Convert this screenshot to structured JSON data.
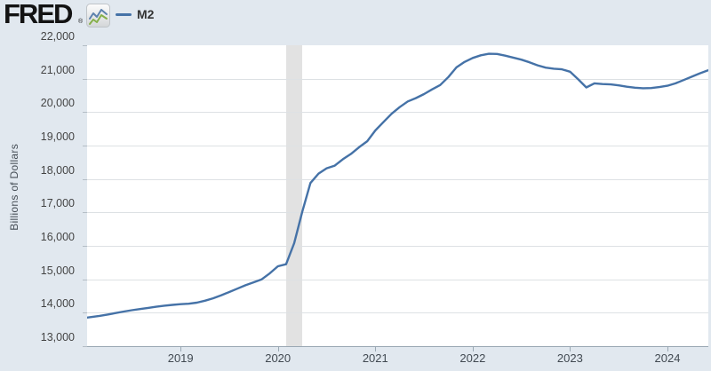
{
  "header": {
    "logo_text": "FRED",
    "registered_mark": "®",
    "sparkline_icon": "fred-sparkline-icon",
    "legend": {
      "label": "M2",
      "swatch_color": "#4572a7"
    }
  },
  "colors": {
    "background": "#e1e8ef",
    "plot_background": "#ffffff",
    "gridline": "#dde1e4",
    "axis_line": "#9aa8b3",
    "tick_label": "#444444",
    "series_line": "#4572a7",
    "recession_band": "#e2e2e2"
  },
  "chart_data": {
    "type": "line",
    "title": "",
    "ylabel": "Billions of Dollars",
    "xlabel": "",
    "legend_position": "top-left",
    "grid": "horizontal",
    "ylim": [
      13000,
      22000
    ],
    "x_domain": [
      2018.04,
      2024.42
    ],
    "y_ticks": [
      {
        "value": 22000,
        "label": "22,000"
      },
      {
        "value": 21000,
        "label": "21,000"
      },
      {
        "value": 20000,
        "label": "20,000"
      },
      {
        "value": 19000,
        "label": "19,000"
      },
      {
        "value": 18000,
        "label": "18,000"
      },
      {
        "value": 17000,
        "label": "17,000"
      },
      {
        "value": 16000,
        "label": "16,000"
      },
      {
        "value": 15000,
        "label": "15,000"
      },
      {
        "value": 14000,
        "label": "14,000"
      },
      {
        "value": 13000,
        "label": "13,000"
      }
    ],
    "x_ticks": [
      {
        "value": 2019,
        "label": "2019"
      },
      {
        "value": 2020,
        "label": "2020"
      },
      {
        "value": 2021,
        "label": "2021"
      },
      {
        "value": 2022,
        "label": "2022"
      },
      {
        "value": 2023,
        "label": "2023"
      },
      {
        "value": 2024,
        "label": "2024"
      }
    ],
    "recession_band": {
      "start": 2020.083,
      "end": 2020.25,
      "color": "#e2e2e2"
    },
    "series": [
      {
        "name": "M2",
        "color": "#4572a7",
        "frequency": "monthly",
        "start": "2018-01",
        "values": [
          13838,
          13870,
          13905,
          13945,
          13990,
          14035,
          14075,
          14110,
          14145,
          14180,
          14210,
          14235,
          14255,
          14270,
          14300,
          14360,
          14430,
          14520,
          14620,
          14720,
          14820,
          14910,
          15000,
          15180,
          15390,
          15450,
          16080,
          17020,
          17880,
          18160,
          18320,
          18400,
          18590,
          18750,
          18950,
          19130,
          19450,
          19700,
          19950,
          20150,
          20320,
          20420,
          20540,
          20680,
          20810,
          21050,
          21340,
          21500,
          21620,
          21700,
          21745,
          21740,
          21690,
          21630,
          21570,
          21490,
          21400,
          21330,
          21300,
          21280,
          21210,
          20980,
          20740,
          20860,
          20840,
          20830,
          20800,
          20760,
          20730,
          20715,
          20720,
          20750,
          20790,
          20860,
          20960,
          21060,
          21160,
          21250
        ]
      }
    ]
  }
}
